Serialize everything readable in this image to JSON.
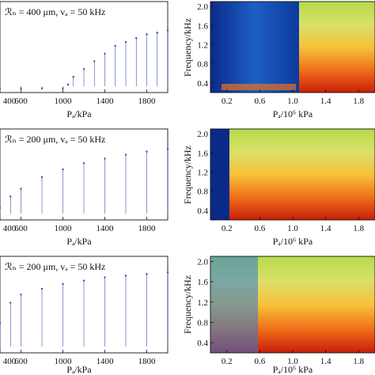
{
  "chart_data": [
    {
      "type": "scatter",
      "note": "ℛₙ = 400 μm, vₐ = 50 kHz",
      "xlabel": "Pₐ/kPa",
      "xticks": [
        400,
        600,
        1000,
        1400,
        1800
      ],
      "xlim": [
        400,
        2000
      ],
      "series": [
        {
          "x": [
            400,
            600,
            800,
            1000,
            1050,
            1100,
            1200,
            1300,
            1400,
            1500,
            1600,
            1700,
            1800,
            1900,
            2000
          ],
          "y": [
            0.0,
            0.0,
            0.0,
            0.0,
            0.05,
            0.15,
            0.25,
            0.35,
            0.45,
            0.55,
            0.6,
            0.65,
            0.7,
            0.72,
            0.75
          ]
        }
      ],
      "scatter_color": "#3a4fb0"
    },
    {
      "type": "heatmap",
      "xlabel": "Pₐ/10⁶ kPa",
      "ylabel": "Frequency/kHz",
      "xticks": [
        "0.2",
        "0.6",
        "1.0",
        "1.4",
        "1.8"
      ],
      "yticks": [
        "0.4",
        "0.8",
        "1.2",
        "1.6",
        "2.0"
      ],
      "xlim": [
        0,
        2.0
      ],
      "ylim": [
        0.2,
        2.1
      ]
    },
    {
      "type": "scatter",
      "note": "ℛₙ = 200 μm, vₐ = 50 kHz",
      "xlabel": "Pₐ/kPa",
      "xticks": [
        400,
        600,
        1000,
        1400,
        1800
      ],
      "xlim": [
        400,
        2000
      ],
      "series": [
        {
          "x": [
            400,
            500,
            600,
            800,
            1000,
            1200,
            1400,
            1600,
            1800,
            2000
          ],
          "y": [
            0.1,
            0.25,
            0.35,
            0.5,
            0.6,
            0.68,
            0.74,
            0.79,
            0.83,
            0.86
          ]
        }
      ],
      "scatter_color": "#3a4fb0"
    },
    {
      "type": "heatmap",
      "xlabel": "Pₐ/10⁶ kPa",
      "ylabel": "Frequency/kHz",
      "xticks": [
        "0.2",
        "0.6",
        "1.0",
        "1.4",
        "1.8"
      ],
      "yticks": [
        "0.4",
        "0.8",
        "1.2",
        "1.6",
        "2.0"
      ],
      "xlim": [
        0,
        2.0
      ],
      "ylim": [
        0.2,
        2.1
      ]
    },
    {
      "type": "scatter",
      "note": "ℛₙ = 200 μm, vₐ = 50 kHz",
      "xlabel": "Pₐ/kPa",
      "xticks": [
        400,
        600,
        1000,
        1400,
        1800
      ],
      "xlim": [
        400,
        2000
      ],
      "series": [
        {
          "x": [
            400,
            500,
            600,
            800,
            1000,
            1200,
            1400,
            1600,
            1800,
            2000
          ],
          "y": [
            0.3,
            0.55,
            0.65,
            0.72,
            0.78,
            0.82,
            0.86,
            0.88,
            0.9,
            0.92
          ]
        }
      ],
      "scatter_color": "#3a4fb0"
    },
    {
      "type": "heatmap",
      "xlabel": "Pₐ/10⁶ kPa",
      "ylabel": "Frequency/kHz",
      "xticks": [
        "0.2",
        "0.6",
        "1.0",
        "1.4",
        "1.8"
      ],
      "yticks": [
        "0.4",
        "0.8",
        "1.2",
        "1.6",
        "2.0"
      ],
      "xlim": [
        0,
        2.0
      ],
      "ylim": [
        0.2,
        2.1
      ]
    }
  ]
}
